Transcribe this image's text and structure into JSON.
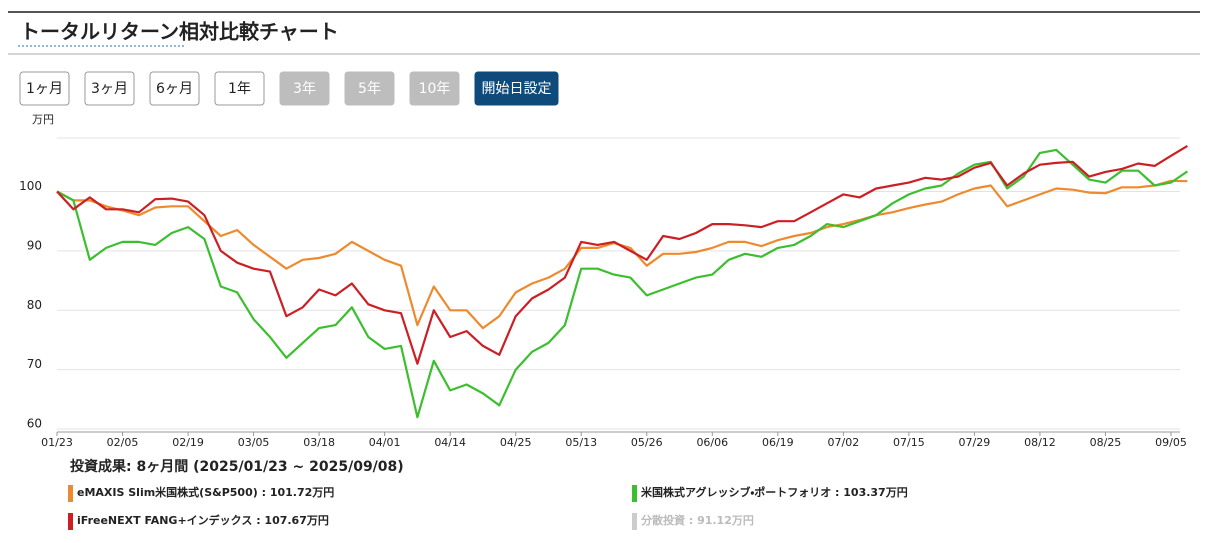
{
  "header": {
    "title": "トータルリターン相対比較チャート"
  },
  "buttons": [
    {
      "label": "1ヶ月",
      "state": "normal"
    },
    {
      "label": "3ヶ月",
      "state": "normal"
    },
    {
      "label": "6ヶ月",
      "state": "normal"
    },
    {
      "label": "1年",
      "state": "normal"
    },
    {
      "label": "3年",
      "state": "disabled"
    },
    {
      "label": "5年",
      "state": "disabled"
    },
    {
      "label": "10年",
      "state": "disabled"
    },
    {
      "label": "開始日設定",
      "state": "active"
    }
  ],
  "chart_data": {
    "type": "line",
    "y_unit": "万円",
    "ylim": [
      59,
      109
    ],
    "yticks": [
      60,
      70,
      80,
      90,
      100
    ],
    "grid": true,
    "categories": [
      "01/23",
      null,
      null,
      null,
      "02/05",
      null,
      null,
      null,
      "02/19",
      null,
      null,
      null,
      "03/05",
      null,
      null,
      null,
      "03/18",
      null,
      null,
      null,
      "04/01",
      null,
      null,
      null,
      "04/14",
      null,
      null,
      null,
      "04/25",
      null,
      null,
      null,
      "05/13",
      null,
      null,
      null,
      "05/26",
      null,
      null,
      null,
      "06/06",
      null,
      null,
      null,
      "06/19",
      null,
      null,
      null,
      "07/02",
      null,
      null,
      null,
      "07/15",
      null,
      null,
      null,
      "07/29",
      null,
      null,
      null,
      "08/12",
      null,
      null,
      null,
      "08/25",
      null,
      null,
      null,
      "09/05",
      null
    ],
    "series": [
      {
        "name": "eMAXIS Slim米国株式(S&P500)",
        "result_label": "101.72万円",
        "color": "#ee8a2e",
        "values": [
          100,
          98.5,
          98.5,
          97.5,
          96.8,
          96,
          97.3,
          97.5,
          97.5,
          95,
          92.5,
          93.5,
          91,
          89,
          87,
          88.5,
          88.8,
          89.5,
          91.5,
          90,
          88.5,
          87.5,
          77.5,
          84,
          80,
          80,
          77,
          79,
          83,
          84.5,
          85.5,
          87,
          90.5,
          90.5,
          91.3,
          90.5,
          87.5,
          89.5,
          89.5,
          89.8,
          90.5,
          91.5,
          91.5,
          90.8,
          91.8,
          92.5,
          93,
          94,
          94.5,
          95.2,
          96,
          96.5,
          97.2,
          97.8,
          98.3,
          99.5,
          100.5,
          101,
          97.5,
          98.5,
          99.5,
          100.5,
          100.3,
          99.8,
          99.7,
          100.7,
          100.7,
          101,
          101.8,
          101.72
        ]
      },
      {
        "name": "米国株式アグレッシブ・ポートフォリオ",
        "result_label": "103.37万円",
        "color": "#3bbf2e",
        "values": [
          100,
          98.5,
          88.5,
          90.5,
          91.5,
          91.5,
          91,
          93,
          94,
          92,
          84,
          83,
          78.5,
          75.5,
          72,
          74.5,
          77,
          77.5,
          80.5,
          75.5,
          73.5,
          74,
          62,
          71.5,
          66.5,
          67.5,
          66,
          64,
          70,
          73,
          74.5,
          77.5,
          87,
          87,
          86,
          85.5,
          82.5,
          83.5,
          84.5,
          85.5,
          86,
          88.5,
          89.5,
          89,
          90.5,
          91,
          92.5,
          94.5,
          94,
          95,
          96,
          98,
          99.5,
          100.5,
          101,
          103,
          104.5,
          105,
          100.5,
          102.5,
          106.5,
          107,
          104.5,
          102,
          101.5,
          103.5,
          103.5,
          101,
          101.5,
          103.37
        ]
      },
      {
        "name": "iFreeNEXT FANG+インデックス",
        "result_label": "107.67万円",
        "color": "#cc1f24",
        "values": [
          100,
          97,
          99,
          97,
          97,
          96.5,
          98.7,
          98.8,
          98.3,
          96,
          90,
          88,
          87,
          86.5,
          79,
          80.5,
          83.5,
          82.5,
          84.5,
          81,
          80,
          79.5,
          71,
          80,
          75.5,
          76.5,
          74,
          72.5,
          79,
          82,
          83.5,
          85.5,
          91.5,
          91,
          91.5,
          90,
          88.5,
          92.5,
          92,
          93,
          94.5,
          94.5,
          94.3,
          94,
          95,
          95,
          96.5,
          98,
          99.5,
          99,
          100.5,
          101,
          101.5,
          102.3,
          102,
          102.5,
          104,
          104.8,
          101,
          103,
          104.5,
          104.8,
          105,
          102.5,
          103.3,
          103.8,
          104.7,
          104.3,
          106,
          107.67
        ]
      }
    ],
    "legend_extra": {
      "name": "分散投資",
      "result_label": "91.12万円",
      "color": "#cccccc"
    },
    "legend_separator": " : ",
    "summary": "投資成果: 8ヶ月間 (2025/01/23 ~ 2025/09/08)"
  }
}
